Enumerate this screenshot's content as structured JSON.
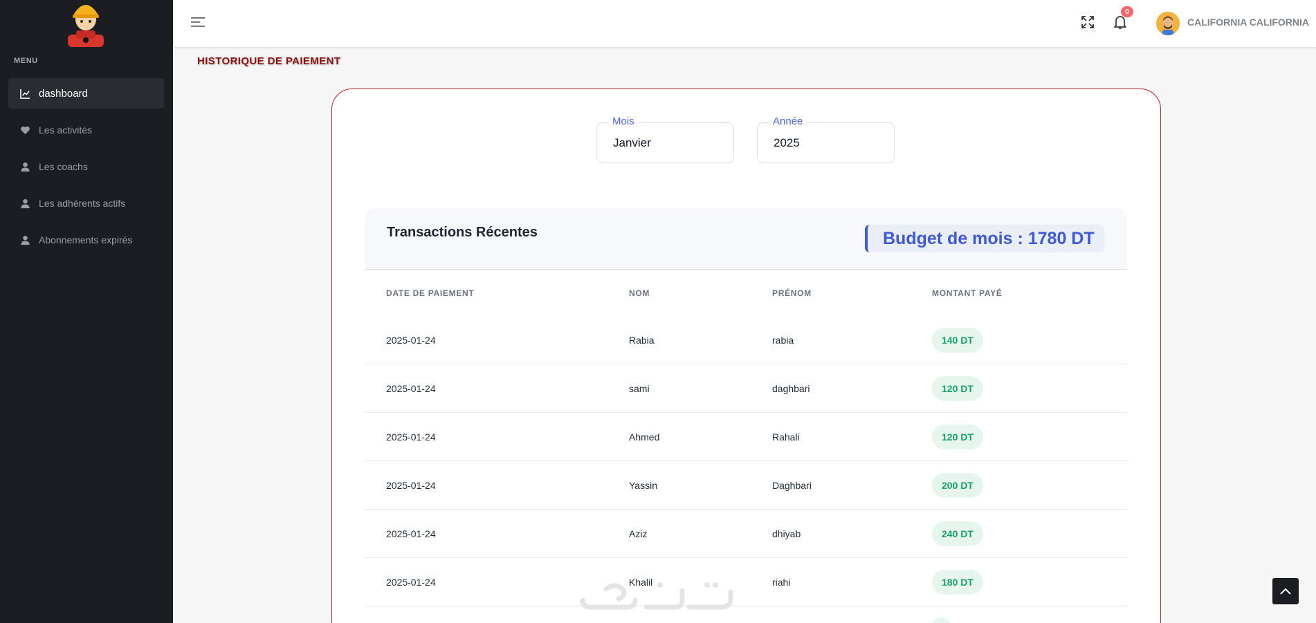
{
  "sidebar": {
    "menu_title": "MENU",
    "items": [
      {
        "label": "dashboard",
        "icon": "chart-line-icon"
      },
      {
        "label": "Les activités",
        "icon": "heart-icon"
      },
      {
        "label": "Les coachs",
        "icon": "user-icon"
      },
      {
        "label": "Les adhérents actifs",
        "icon": "user-icon"
      },
      {
        "label": "Abonnements expirés",
        "icon": "user-icon"
      }
    ]
  },
  "header": {
    "notification_count": "0",
    "username": "CALIFORNIA CALIFORNIA"
  },
  "page": {
    "title": "HISTORIQUE DE PAIEMENT"
  },
  "filters": {
    "month": {
      "label": "Mois",
      "value": "Janvier"
    },
    "year": {
      "label": "Année",
      "value": "2025"
    }
  },
  "transactions": {
    "title": "Transactions Récentes",
    "budget": "Budget de mois : 1780 DT",
    "columns": [
      "DATE DE PAIEMENT",
      "NOM",
      "PRÉNOM",
      "MONTANT PAYÉ"
    ],
    "rows": [
      {
        "date": "2025-01-24",
        "nom": "Rabia",
        "prenom": "rabia",
        "montant": "140 DT"
      },
      {
        "date": "2025-01-24",
        "nom": "sami",
        "prenom": "daghbari",
        "montant": "120 DT"
      },
      {
        "date": "2025-01-24",
        "nom": "Ahmed",
        "prenom": "Rahali",
        "montant": "120 DT"
      },
      {
        "date": "2025-01-24",
        "nom": "Yassin",
        "prenom": "Daghbari",
        "montant": "200 DT"
      },
      {
        "date": "2025-01-24",
        "nom": "Aziz",
        "prenom": "dhiyab",
        "montant": "240 DT"
      },
      {
        "date": "2025-01-24",
        "nom": "Khalil",
        "prenom": "riahi",
        "montant": "180 DT"
      }
    ]
  },
  "colors": {
    "sidebar_bg": "#1c1d22",
    "accent_blue": "#3e58d8",
    "card_border": "#b62a2a",
    "title_red": "#8b1010",
    "amount_green": "#16a06a"
  }
}
